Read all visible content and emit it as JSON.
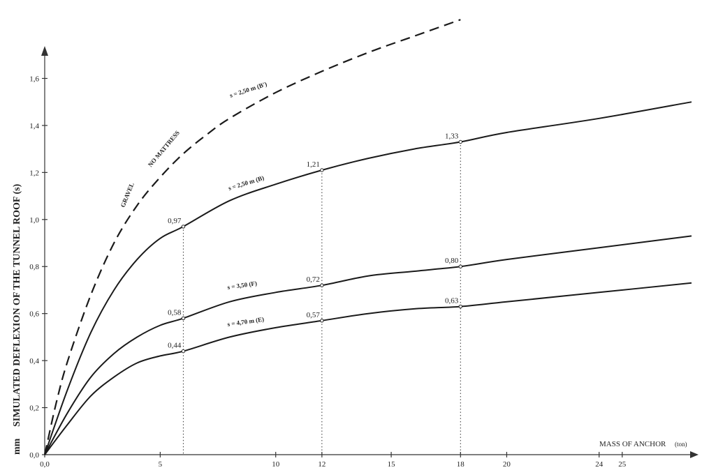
{
  "chart_data": {
    "type": "line",
    "title": "",
    "xlabel": "MASS OF ANCHOR",
    "xlabel_unit": "(ton)",
    "ylabel_unit": "mm",
    "ylabel": "SIMULATED DEFLEXION OF THE TUNNEL ROOF (s)",
    "xlim": [
      0,
      28
    ],
    "ylim": [
      0,
      1.72
    ],
    "x_ticks": [
      {
        "value": 0,
        "label": "0,0"
      },
      {
        "value": 5,
        "label": "5"
      },
      {
        "value": 10,
        "label": "10"
      },
      {
        "value": 12,
        "label": "12"
      },
      {
        "value": 15,
        "label": "15"
      },
      {
        "value": 18,
        "label": "18"
      },
      {
        "value": 20,
        "label": "20"
      },
      {
        "value": 24,
        "label": "24"
      },
      {
        "value": 25,
        "label": "25"
      }
    ],
    "y_ticks": [
      {
        "value": 0.0,
        "label": "0,0"
      },
      {
        "value": 0.2,
        "label": "0,2"
      },
      {
        "value": 0.4,
        "label": "0,4"
      },
      {
        "value": 0.6,
        "label": "0,6"
      },
      {
        "value": 0.8,
        "label": "0,8"
      },
      {
        "value": 1.0,
        "label": "1,0"
      },
      {
        "value": 1.2,
        "label": "1,2"
      },
      {
        "value": 1.4,
        "label": "1,4"
      },
      {
        "value": 1.6,
        "label": "1,6"
      }
    ],
    "grid": false,
    "series": [
      {
        "name": "s = 2,50 m (B')",
        "style": "dashed",
        "x": [
          0,
          0.5,
          1,
          2,
          3,
          4,
          5,
          6,
          7,
          8,
          10,
          12,
          14,
          16,
          18
        ],
        "y": [
          0,
          0.22,
          0.4,
          0.68,
          0.9,
          1.06,
          1.18,
          1.28,
          1.36,
          1.43,
          1.54,
          1.63,
          1.71,
          1.78,
          1.85
        ]
      },
      {
        "name": "s = 2,50 m (B)",
        "style": "solid",
        "x": [
          0,
          1,
          2,
          3,
          4,
          5,
          6,
          8,
          10,
          12,
          14,
          16,
          18,
          20,
          24,
          28
        ],
        "y": [
          0,
          0.28,
          0.52,
          0.7,
          0.83,
          0.92,
          0.97,
          1.08,
          1.15,
          1.21,
          1.26,
          1.3,
          1.33,
          1.37,
          1.43,
          1.5
        ],
        "labeled_points": [
          {
            "x": 6,
            "y": 0.97,
            "label": "0,97"
          },
          {
            "x": 12,
            "y": 1.21,
            "label": "1,21"
          },
          {
            "x": 18,
            "y": 1.33,
            "label": "1,33"
          }
        ]
      },
      {
        "name": "s = 3,50 (F)",
        "style": "solid",
        "x": [
          0,
          1,
          2,
          3,
          4,
          5,
          6,
          8,
          10,
          12,
          14,
          16,
          18,
          20,
          24,
          28
        ],
        "y": [
          0,
          0.18,
          0.33,
          0.43,
          0.5,
          0.55,
          0.58,
          0.65,
          0.69,
          0.72,
          0.76,
          0.78,
          0.8,
          0.83,
          0.88,
          0.93
        ],
        "labeled_points": [
          {
            "x": 6,
            "y": 0.58,
            "label": "0,58"
          },
          {
            "x": 12,
            "y": 0.72,
            "label": "0,72"
          },
          {
            "x": 18,
            "y": 0.8,
            "label": "0,80"
          }
        ]
      },
      {
        "name": "s = 4,70 m (E)",
        "style": "solid",
        "x": [
          0,
          1,
          2,
          3,
          4,
          5,
          6,
          8,
          10,
          12,
          14,
          16,
          18,
          20,
          24,
          28
        ],
        "y": [
          0,
          0.13,
          0.25,
          0.33,
          0.39,
          0.42,
          0.44,
          0.5,
          0.54,
          0.57,
          0.6,
          0.62,
          0.63,
          0.65,
          0.69,
          0.73
        ],
        "labeled_points": [
          {
            "x": 6,
            "y": 0.44,
            "label": "0,44"
          },
          {
            "x": 12,
            "y": 0.57,
            "label": "0,57"
          },
          {
            "x": 18,
            "y": 0.63,
            "label": "0,63"
          }
        ]
      }
    ],
    "annotations": [
      "GRAVEL",
      "NO MATTRESS"
    ]
  }
}
